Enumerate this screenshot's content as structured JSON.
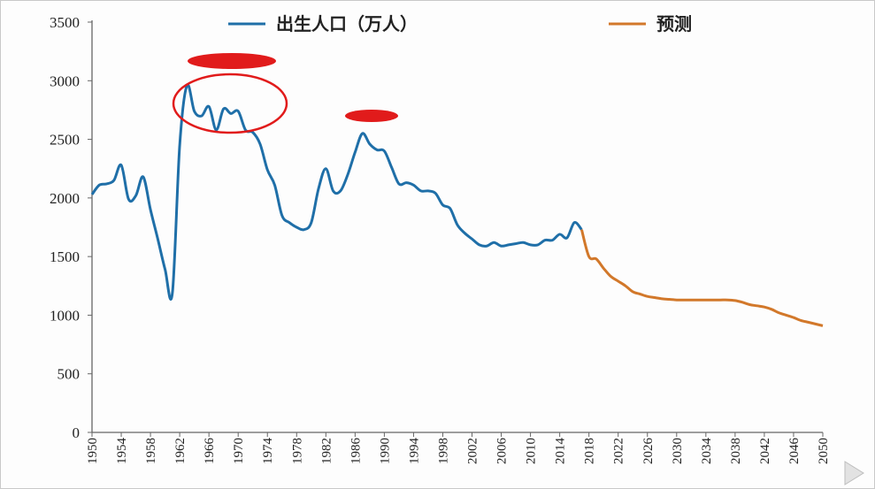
{
  "chart_data": {
    "type": "line",
    "title": "",
    "xlabel": "",
    "ylabel": "",
    "ylim": [
      0,
      3500
    ],
    "xlim": [
      1950,
      2050
    ],
    "y_ticks": [
      "0",
      "500",
      "1000",
      "1500",
      "2000",
      "2500",
      "3000",
      "3500"
    ],
    "x_ticks": [
      "1950",
      "1954",
      "1958",
      "1962",
      "1966",
      "1970",
      "1974",
      "1978",
      "1982",
      "1986",
      "1990",
      "1994",
      "1998",
      "2002",
      "2006",
      "2010",
      "2014",
      "2018",
      "2022",
      "2026",
      "2030",
      "2034",
      "2038",
      "2042",
      "2046",
      "2050"
    ],
    "legend_position": "top",
    "series": [
      {
        "name": "出生人口（万人）",
        "color": "#1f6fa8",
        "points": [
          [
            1950,
            2030
          ],
          [
            1951,
            2110
          ],
          [
            1952,
            2120
          ],
          [
            1953,
            2150
          ],
          [
            1954,
            2280
          ],
          [
            1955,
            1990
          ],
          [
            1956,
            2020
          ],
          [
            1957,
            2180
          ],
          [
            1958,
            1900
          ],
          [
            1959,
            1650
          ],
          [
            1960,
            1390
          ],
          [
            1961,
            1190
          ],
          [
            1962,
            2450
          ],
          [
            1963,
            2960
          ],
          [
            1964,
            2740
          ],
          [
            1965,
            2700
          ],
          [
            1966,
            2780
          ],
          [
            1967,
            2580
          ],
          [
            1968,
            2760
          ],
          [
            1969,
            2720
          ],
          [
            1970,
            2740
          ],
          [
            1971,
            2580
          ],
          [
            1972,
            2560
          ],
          [
            1973,
            2460
          ],
          [
            1974,
            2240
          ],
          [
            1975,
            2110
          ],
          [
            1976,
            1850
          ],
          [
            1977,
            1790
          ],
          [
            1978,
            1750
          ],
          [
            1979,
            1730
          ],
          [
            1980,
            1790
          ],
          [
            1981,
            2080
          ],
          [
            1982,
            2250
          ],
          [
            1983,
            2060
          ],
          [
            1984,
            2060
          ],
          [
            1985,
            2200
          ],
          [
            1986,
            2390
          ],
          [
            1987,
            2550
          ],
          [
            1988,
            2460
          ],
          [
            1989,
            2410
          ],
          [
            1990,
            2400
          ],
          [
            1991,
            2260
          ],
          [
            1992,
            2120
          ],
          [
            1993,
            2130
          ],
          [
            1994,
            2110
          ],
          [
            1995,
            2060
          ],
          [
            1996,
            2060
          ],
          [
            1997,
            2040
          ],
          [
            1998,
            1940
          ],
          [
            1999,
            1910
          ],
          [
            2000,
            1770
          ],
          [
            2001,
            1700
          ],
          [
            2002,
            1650
          ],
          [
            2003,
            1600
          ],
          [
            2004,
            1590
          ],
          [
            2005,
            1620
          ],
          [
            2006,
            1590
          ],
          [
            2007,
            1600
          ],
          [
            2008,
            1610
          ],
          [
            2009,
            1620
          ],
          [
            2010,
            1600
          ],
          [
            2011,
            1600
          ],
          [
            2012,
            1640
          ],
          [
            2013,
            1640
          ],
          [
            2014,
            1690
          ],
          [
            2015,
            1660
          ],
          [
            2016,
            1790
          ],
          [
            2017,
            1730
          ]
        ]
      },
      {
        "name": "预测",
        "color": "#d2782a",
        "points": [
          [
            2017,
            1730
          ],
          [
            2018,
            1500
          ],
          [
            2019,
            1480
          ],
          [
            2020,
            1400
          ],
          [
            2021,
            1330
          ],
          [
            2022,
            1290
          ],
          [
            2023,
            1250
          ],
          [
            2024,
            1200
          ],
          [
            2025,
            1180
          ],
          [
            2026,
            1160
          ],
          [
            2027,
            1150
          ],
          [
            2028,
            1140
          ],
          [
            2029,
            1135
          ],
          [
            2030,
            1130
          ],
          [
            2031,
            1130
          ],
          [
            2032,
            1130
          ],
          [
            2033,
            1130
          ],
          [
            2034,
            1130
          ],
          [
            2035,
            1130
          ],
          [
            2036,
            1130
          ],
          [
            2037,
            1130
          ],
          [
            2038,
            1125
          ],
          [
            2039,
            1110
          ],
          [
            2040,
            1090
          ],
          [
            2041,
            1080
          ],
          [
            2042,
            1070
          ],
          [
            2043,
            1050
          ],
          [
            2044,
            1020
          ],
          [
            2045,
            1000
          ],
          [
            2046,
            980
          ],
          [
            2047,
            955
          ],
          [
            2048,
            940
          ],
          [
            2049,
            925
          ],
          [
            2050,
            910
          ]
        ]
      }
    ]
  },
  "annotations": {
    "marker_color": "#e11b1b"
  }
}
